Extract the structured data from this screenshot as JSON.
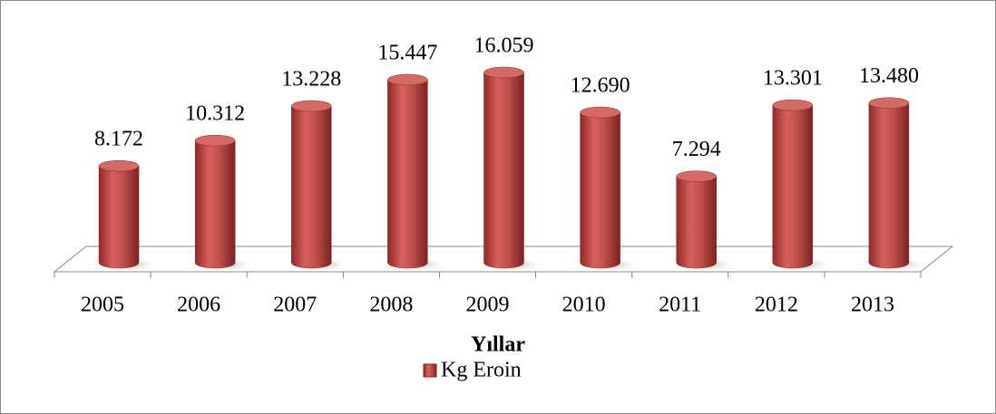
{
  "chart_data": {
    "type": "bar",
    "x_label": "Yıllar",
    "categories": [
      "2005",
      "2006",
      "2007",
      "2008",
      "2009",
      "2010",
      "2011",
      "2012",
      "2013"
    ],
    "series": [
      {
        "name": "Kg Eroin",
        "color": "#c0504d",
        "values": [
          8172,
          10312,
          13228,
          15447,
          16059,
          12690,
          7294,
          13301,
          13480
        ],
        "value_labels": [
          "8.172",
          "10.312",
          "13.228",
          "15.447",
          "16.059",
          "12.690",
          "7.294",
          "13.301",
          "13.480"
        ]
      }
    ],
    "legend": "bottom"
  }
}
